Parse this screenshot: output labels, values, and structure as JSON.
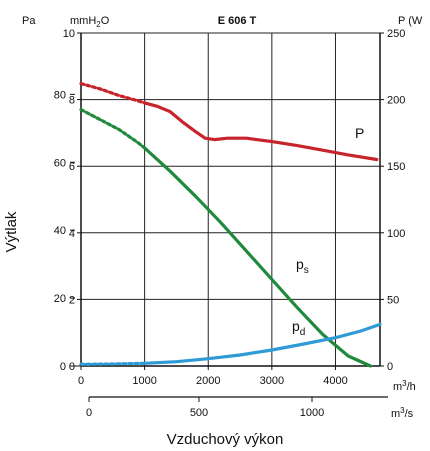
{
  "chart_data": {
    "type": "line",
    "title": "E 606 T",
    "ylabel": "Výtlak",
    "xlabel": "Vzduchový výkon",
    "left_outer_axis": {
      "unit": "Pa",
      "ticks": [
        "0",
        "20",
        "40",
        "60",
        "80"
      ]
    },
    "left_inner_axis": {
      "unit": "mmH2O",
      "ticks": [
        "0",
        "2",
        "4",
        "6",
        "8",
        "10"
      ],
      "ylim": [
        0,
        10
      ]
    },
    "right_axis": {
      "unit": "P (W",
      "ticks": [
        "0",
        "50",
        "100",
        "150",
        "200",
        "250"
      ],
      "ylim": [
        0,
        250
      ]
    },
    "x_axis": {
      "unit": "m3/h",
      "ticks": [
        "0",
        "1000",
        "2000",
        "3000",
        "4000"
      ],
      "xlim": [
        0,
        4700
      ]
    },
    "x2_axis": {
      "unit": "m3/s",
      "ticks": [
        "0",
        "500",
        "1000"
      ]
    },
    "grid": true,
    "series": [
      {
        "name": "P",
        "axis": "right",
        "color": "#c8242c",
        "dashed": [
          [
            0,
            212
          ],
          [
            300,
            208
          ],
          [
            600,
            203
          ],
          [
            900,
            199
          ],
          [
            1000,
            197.5
          ]
        ],
        "solid": [
          [
            1000,
            197.5
          ],
          [
            1200,
            195
          ],
          [
            1400,
            191
          ],
          [
            1600,
            183
          ],
          [
            1800,
            176
          ],
          [
            1950,
            171
          ],
          [
            2100,
            170
          ],
          [
            2300,
            171
          ],
          [
            2600,
            171
          ],
          [
            3000,
            168.5
          ],
          [
            3400,
            165.5
          ],
          [
            3800,
            162
          ],
          [
            4200,
            158.5
          ],
          [
            4650,
            155
          ]
        ]
      },
      {
        "name": "p",
        "subscript": "s",
        "axis": "left",
        "color": "#1f8a3c",
        "dashed": [
          [
            0,
            7.7
          ],
          [
            300,
            7.4
          ],
          [
            600,
            7.1
          ],
          [
            900,
            6.7
          ],
          [
            1000,
            6.55
          ]
        ],
        "solid": [
          [
            1000,
            6.55
          ],
          [
            1400,
            5.85
          ],
          [
            1800,
            5.1
          ],
          [
            2200,
            4.3
          ],
          [
            2600,
            3.45
          ],
          [
            3000,
            2.6
          ],
          [
            3400,
            1.75
          ],
          [
            3800,
            0.95
          ],
          [
            4200,
            0.3
          ],
          [
            4550,
            0
          ]
        ]
      },
      {
        "name": "p",
        "subscript": "d",
        "axis": "left",
        "color": "#2e9ad6",
        "dashed": [
          [
            0,
            0.05
          ],
          [
            500,
            0.06
          ],
          [
            1000,
            0.08
          ]
        ],
        "solid": [
          [
            1000,
            0.08
          ],
          [
            1500,
            0.13
          ],
          [
            2000,
            0.22
          ],
          [
            2500,
            0.33
          ],
          [
            3000,
            0.48
          ],
          [
            3500,
            0.66
          ],
          [
            4000,
            0.85
          ],
          [
            4400,
            1.05
          ],
          [
            4700,
            1.25
          ]
        ]
      }
    ]
  }
}
